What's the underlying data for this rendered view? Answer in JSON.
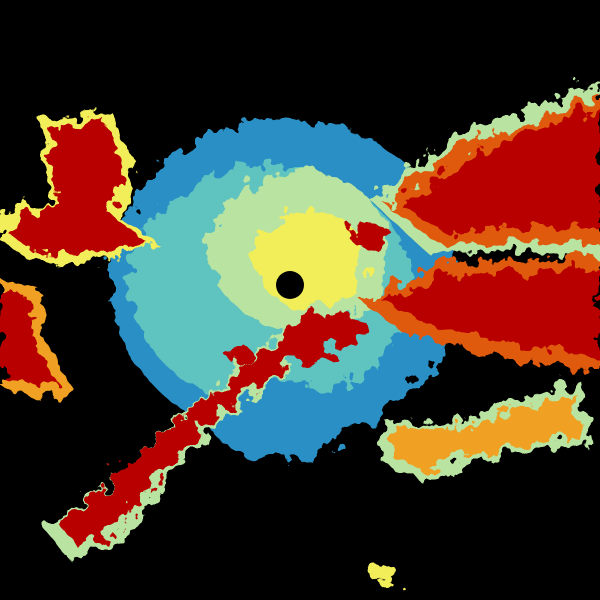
{
  "image": {
    "kind": "weather-radar-reflectivity",
    "background": "#000000",
    "palette": {
      "light": "#2a8fc4",
      "cyan": "#5fc3c0",
      "pale": "#b8e3a0",
      "yellow": "#f2ee5a",
      "orange": "#f0a020",
      "darkorange": "#e05a10",
      "red": "#b80000"
    }
  }
}
